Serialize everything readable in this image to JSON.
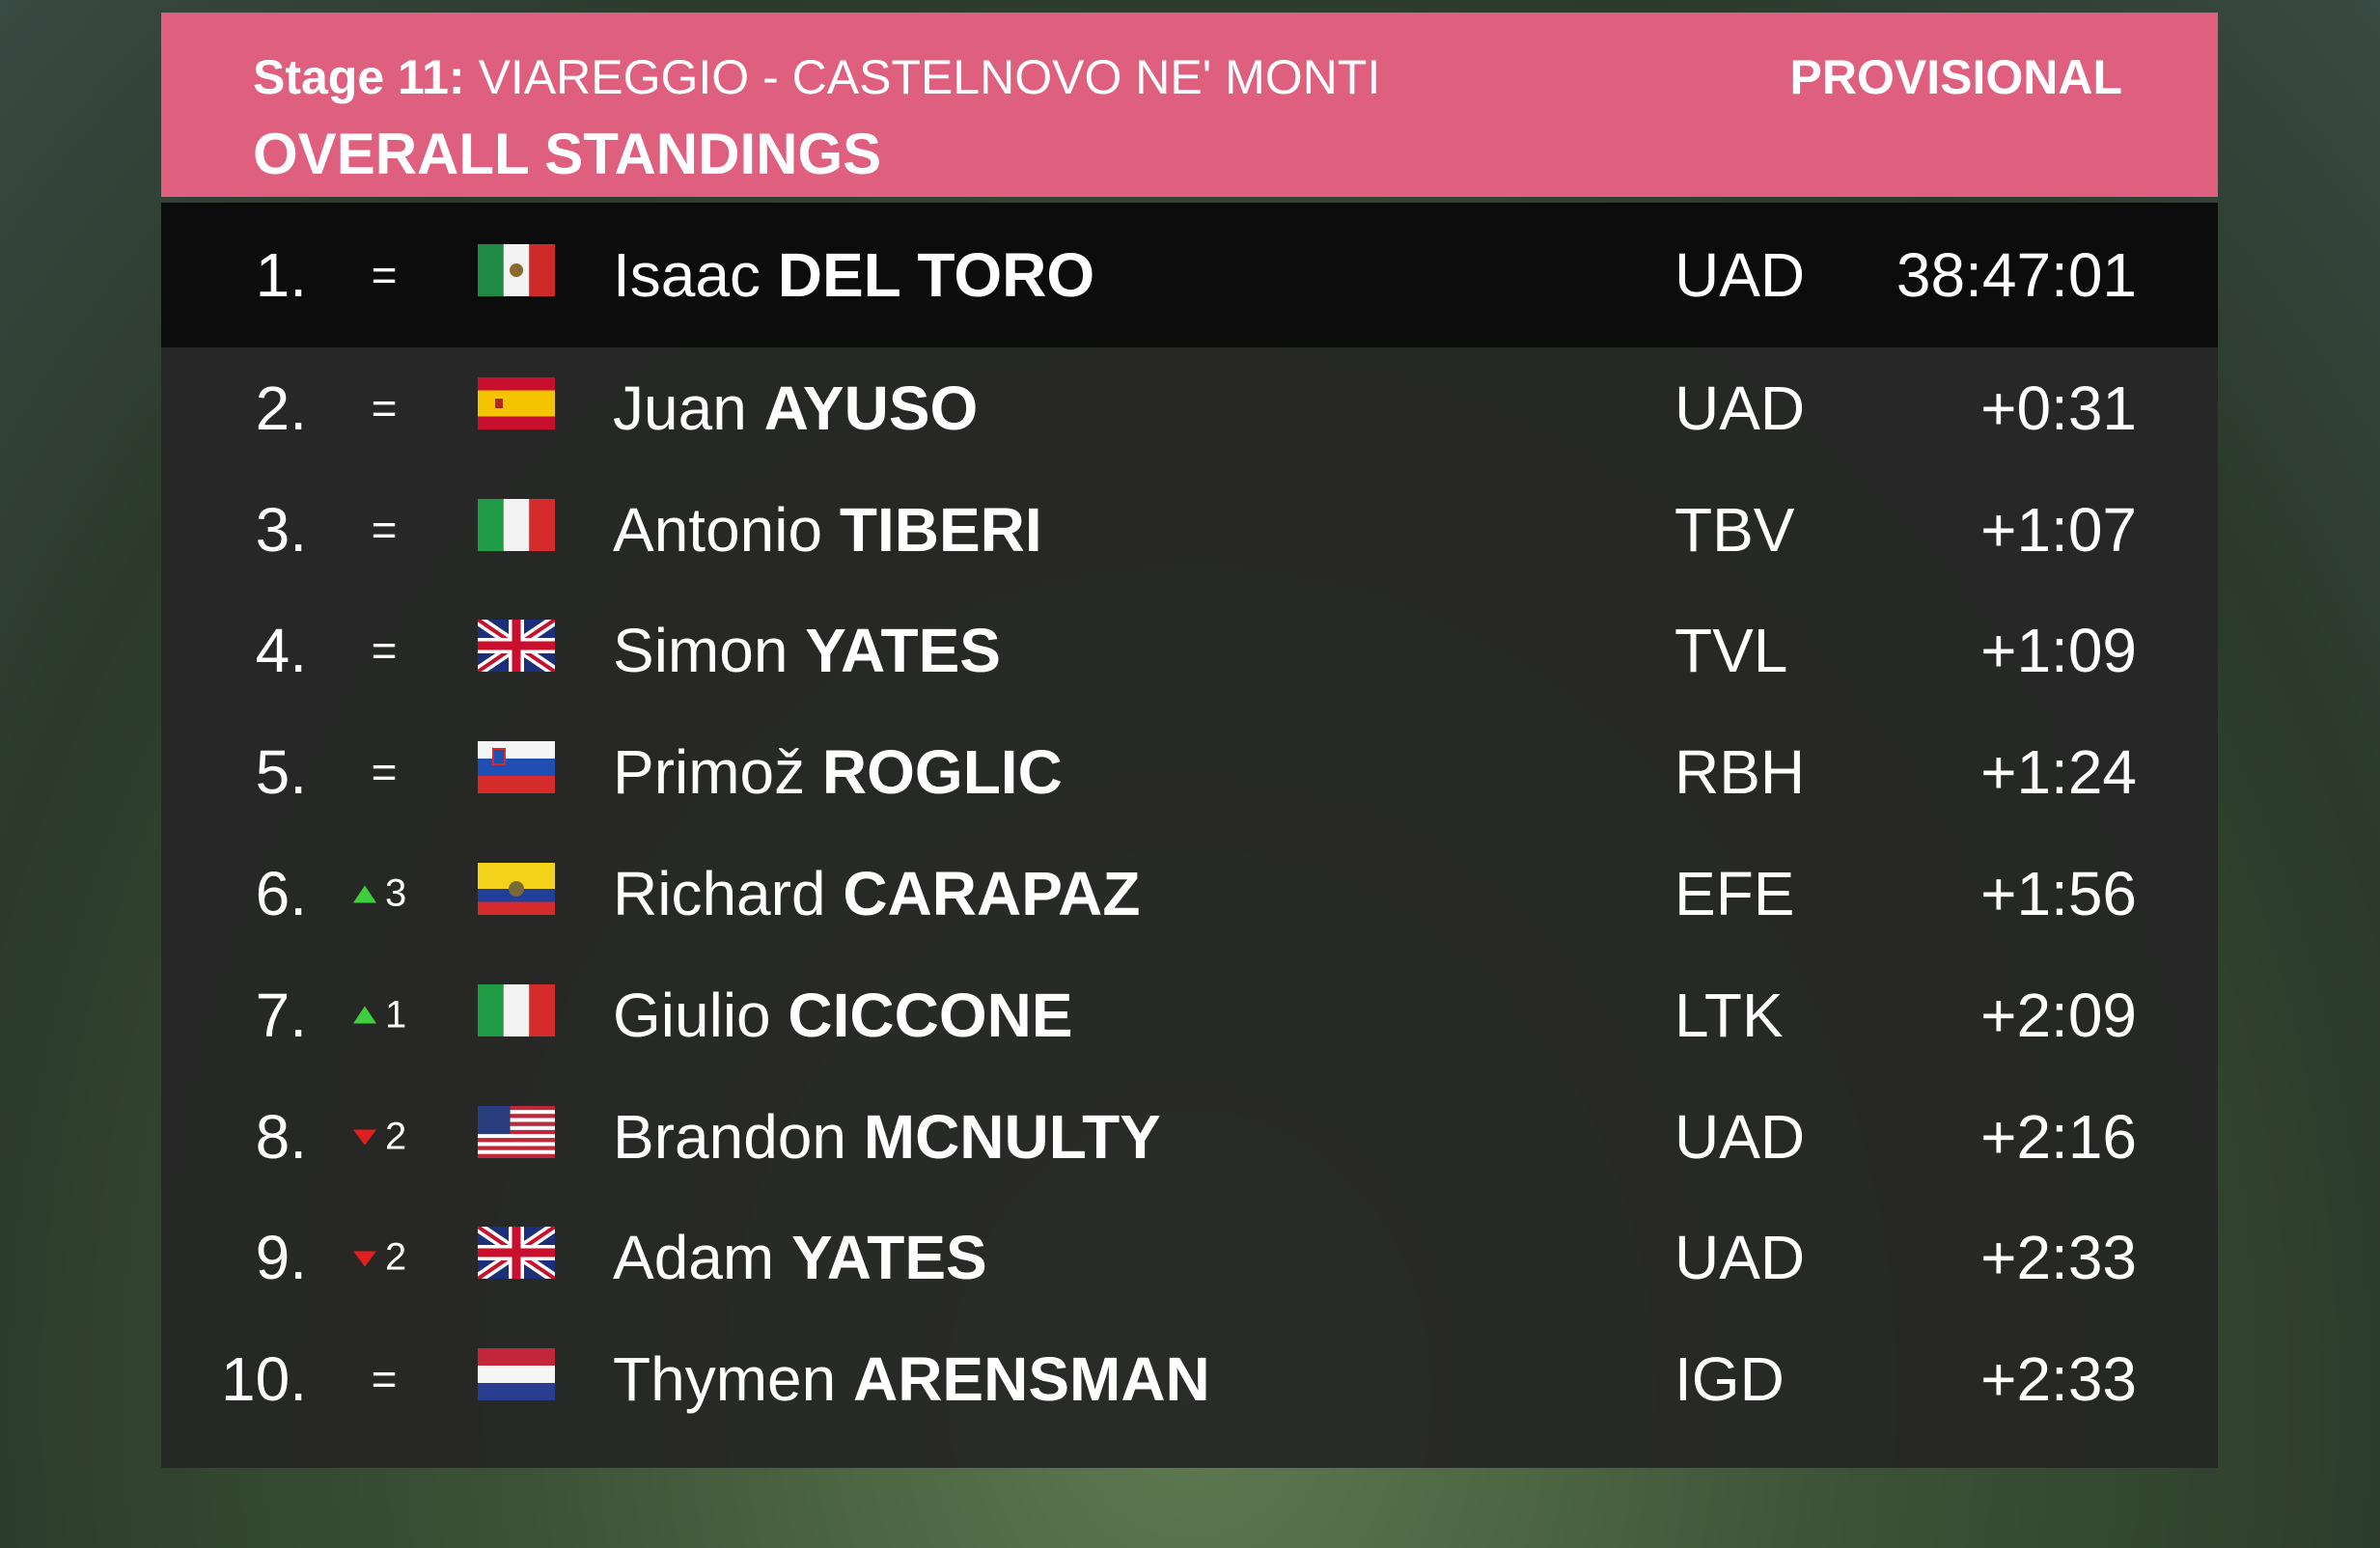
{
  "header": {
    "stage": "Stage 11:",
    "route": "VIAREGGIO - CASTELNOVO NE' MONTI",
    "status": "PROVISIONAL",
    "title": "OVERALL STANDINGS"
  },
  "rows": [
    {
      "rank": "1.",
      "change": "=",
      "first": "Isaac",
      "last": "DEL TORO",
      "team": "UAD",
      "time": "38:47:01"
    },
    {
      "rank": "2.",
      "change": "=",
      "first": "Juan",
      "last": "AYUSO",
      "team": "UAD",
      "time": "+0:31"
    },
    {
      "rank": "3.",
      "change": "=",
      "first": "Antonio",
      "last": "TIBERI",
      "team": "TBV",
      "time": "+1:07"
    },
    {
      "rank": "4.",
      "change": "=",
      "first": "Simon",
      "last": "YATES",
      "team": "TVL",
      "time": "+1:09"
    },
    {
      "rank": "5.",
      "change": "=",
      "first": "Primož",
      "last": "ROGLIC",
      "team": "RBH",
      "time": "+1:24"
    },
    {
      "rank": "6.",
      "change": {
        "direction": "up",
        "places": 3
      },
      "first": "Richard",
      "last": "CARAPAZ",
      "team": "EFE",
      "time": "+1:56"
    },
    {
      "rank": "7.",
      "change": {
        "direction": "up",
        "places": 1
      },
      "first": "Giulio",
      "last": "CICCONE",
      "team": "LTK",
      "time": "+2:09"
    },
    {
      "rank": "8.",
      "change": {
        "direction": "down",
        "places": 2
      },
      "first": "Brandon",
      "last": "MCNULTY",
      "team": "UAD",
      "time": "+2:16"
    },
    {
      "rank": "9.",
      "change": {
        "direction": "down",
        "places": 2
      },
      "first": "Adam",
      "last": "YATES",
      "team": "UAD",
      "time": "+2:33"
    },
    {
      "rank": "10.",
      "change": "=",
      "first": "Thymen",
      "last": "ARENSMAN",
      "team": "IGD",
      "time": "+2:33"
    }
  ]
}
